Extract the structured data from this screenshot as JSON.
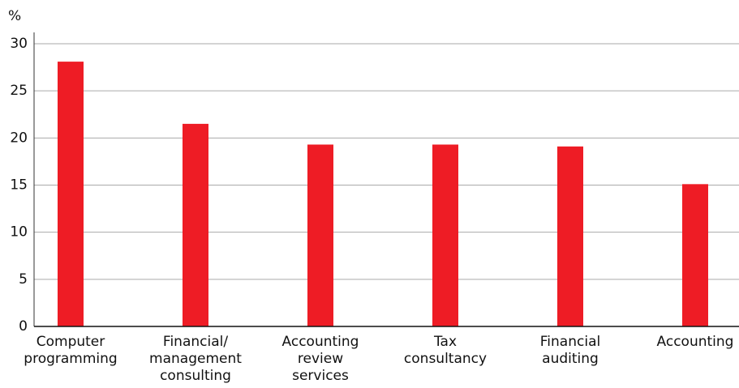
{
  "chart_data": {
    "type": "bar",
    "ylabel": "%",
    "categories": [
      "Computer programming",
      "Financial/ management consulting",
      "Accounting review services",
      "Tax consultancy",
      "Financial auditing",
      "Accounting"
    ],
    "values": [
      28.1,
      21.5,
      19.3,
      19.3,
      19.1,
      15.1
    ],
    "color": "#ee1c25",
    "ylim": [
      0,
      30
    ],
    "yticks": [
      0,
      5,
      10,
      15,
      20,
      25,
      30
    ],
    "grid": true
  }
}
